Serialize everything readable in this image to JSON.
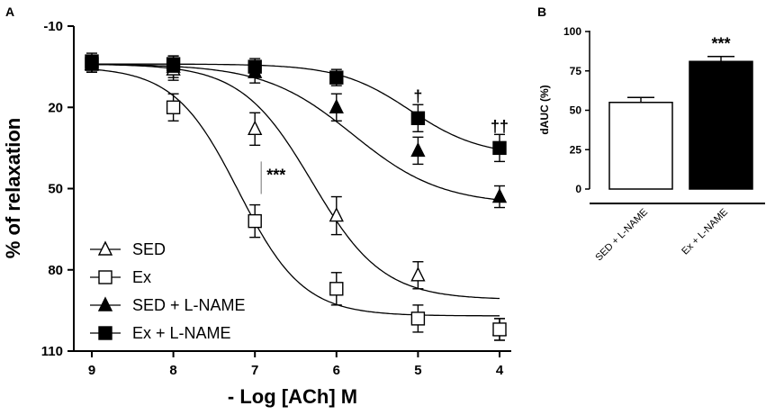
{
  "panels": {
    "a": "A",
    "b": "B"
  },
  "chart_data": [
    {
      "type": "line",
      "panel": "A",
      "xlabel": "- Log [ACh] M",
      "ylabel": "% of relaxation",
      "x_ticks": [
        "9",
        "8",
        "7",
        "6",
        "5",
        "4"
      ],
      "y_ticks": [
        "-10",
        "20",
        "50",
        "80",
        "110"
      ],
      "xlim": [
        9,
        4
      ],
      "ylim": [
        -10,
        110
      ],
      "y_inverted": true,
      "x_reversed": true,
      "legend_position": "bottom-left",
      "series": [
        {
          "name": "SED",
          "marker": "open-triangle",
          "x": [
            9,
            8,
            7,
            6,
            5,
            4
          ],
          "y": [
            4,
            6,
            28,
            60,
            82,
            102
          ],
          "err": [
            1,
            2,
            4,
            5,
            3,
            2
          ],
          "fit": {
            "bottom": 4,
            "top": 91,
            "log_ec50": 6.3,
            "hill": 1.0
          }
        },
        {
          "name": "Ex",
          "marker": "open-square",
          "x": [
            9,
            8,
            7,
            6,
            5,
            4
          ],
          "y": [
            4,
            20,
            62,
            87,
            98,
            102
          ],
          "err": [
            1,
            3,
            4,
            4,
            3,
            2
          ],
          "fit": {
            "bottom": 5,
            "top": 97,
            "log_ec50": 7.2,
            "hill": 1.1
          }
        },
        {
          "name": "SED + L-NAME",
          "marker": "filled-triangle",
          "x": [
            9,
            8,
            7,
            6,
            5,
            4
          ],
          "y": [
            4,
            5,
            7,
            20,
            36,
            53
          ],
          "err": [
            1,
            2,
            2,
            3,
            3,
            2
          ],
          "fit": {
            "bottom": 4,
            "top": 56,
            "log_ec50": 5.8,
            "hill": 0.8
          }
        },
        {
          "name": "Ex + L-NAME",
          "marker": "filled-square",
          "x": [
            9,
            8,
            7,
            6,
            5,
            4
          ],
          "y": [
            3,
            4,
            5,
            9,
            24,
            35
          ],
          "err": [
            1,
            1,
            1,
            1,
            3,
            3
          ],
          "fit": {
            "bottom": 4,
            "top": 38,
            "log_ec50": 5.1,
            "hill": 1.0
          }
        }
      ],
      "annotations": [
        {
          "text": "***",
          "x": 7,
          "y": 45
        },
        {
          "text": "†",
          "x": 5,
          "y": 16
        },
        {
          "text": "††",
          "x": 4,
          "y": 27
        }
      ]
    },
    {
      "type": "bar",
      "panel": "B",
      "ylabel": "dAUC (%)",
      "y_ticks": [
        "0",
        "25",
        "50",
        "75",
        "100"
      ],
      "ylim": [
        0,
        100
      ],
      "categories": [
        "SED + L-NAME",
        "Ex + L-NAME"
      ],
      "values": [
        55,
        81
      ],
      "err": [
        2,
        2
      ],
      "fill": [
        "#ffffff",
        "#000000"
      ],
      "annotations": [
        {
          "text": "***",
          "category": "Ex + L-NAME"
        }
      ]
    }
  ]
}
